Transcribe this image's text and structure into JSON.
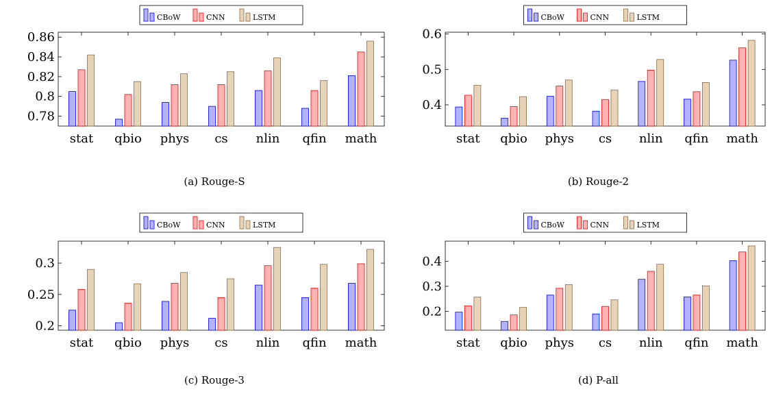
{
  "colors": {
    "CBoW": {
      "fill": "#b3b3ff",
      "stroke": "#0000ff"
    },
    "CNN": {
      "fill": "#ffb3b3",
      "stroke": "#ff0000"
    },
    "LSTM": {
      "fill": "#e6d3b8",
      "stroke": "#8b6b3e"
    }
  },
  "chart_data": [
    {
      "type": "bar",
      "caption": "(a) Rouge-S",
      "categories": [
        "stat",
        "qbio",
        "phys",
        "cs",
        "nlin",
        "qfin",
        "math"
      ],
      "series": [
        {
          "name": "CBoW",
          "values": [
            0.805,
            0.777,
            0.794,
            0.79,
            0.806,
            0.788,
            0.821
          ]
        },
        {
          "name": "CNN",
          "values": [
            0.827,
            0.802,
            0.812,
            0.812,
            0.826,
            0.806,
            0.845
          ]
        },
        {
          "name": "LSTM",
          "values": [
            0.842,
            0.815,
            0.823,
            0.825,
            0.839,
            0.816,
            0.856
          ]
        }
      ],
      "ylim": [
        0.77,
        0.865
      ],
      "yticks": [
        0.78,
        0.8,
        0.82,
        0.84,
        0.86
      ],
      "ytick_labels": [
        "0.78",
        "0.8",
        "0.82",
        "0.84",
        "0.86"
      ],
      "legend": "top-center"
    },
    {
      "type": "bar",
      "caption": "(b) Rouge-2",
      "categories": [
        "stat",
        "qbio",
        "phys",
        "cs",
        "nlin",
        "qfin",
        "math"
      ],
      "series": [
        {
          "name": "CBoW",
          "values": [
            0.394,
            0.362,
            0.424,
            0.382,
            0.466,
            0.416,
            0.526
          ]
        },
        {
          "name": "CNN",
          "values": [
            0.427,
            0.395,
            0.453,
            0.415,
            0.498,
            0.437,
            0.561
          ]
        },
        {
          "name": "LSTM",
          "values": [
            0.455,
            0.423,
            0.47,
            0.442,
            0.528,
            0.463,
            0.582
          ]
        }
      ],
      "ylim": [
        0.34,
        0.605
      ],
      "yticks": [
        0.4,
        0.5,
        0.6
      ],
      "ytick_labels": [
        "0.4",
        "0.5",
        "0.6"
      ],
      "legend": "top-center"
    },
    {
      "type": "bar",
      "caption": "(c) Rouge-3",
      "categories": [
        "stat",
        "qbio",
        "phys",
        "cs",
        "nlin",
        "qfin",
        "math"
      ],
      "series": [
        {
          "name": "CBoW",
          "values": [
            0.225,
            0.205,
            0.239,
            0.212,
            0.265,
            0.245,
            0.268
          ]
        },
        {
          "name": "CNN",
          "values": [
            0.258,
            0.236,
            0.268,
            0.245,
            0.296,
            0.26,
            0.299
          ]
        },
        {
          "name": "LSTM",
          "values": [
            0.29,
            0.267,
            0.285,
            0.275,
            0.325,
            0.298,
            0.322
          ]
        }
      ],
      "ylim": [
        0.193,
        0.335
      ],
      "yticks": [
        0.2,
        0.25,
        0.3
      ],
      "ytick_labels": [
        "0.2",
        "0.25",
        "0.3"
      ],
      "legend": "top-center"
    },
    {
      "type": "bar",
      "caption": "(d) P-all",
      "categories": [
        "stat",
        "qbio",
        "phys",
        "cs",
        "nlin",
        "qfin",
        "math"
      ],
      "series": [
        {
          "name": "CBoW",
          "values": [
            0.197,
            0.16,
            0.265,
            0.19,
            0.328,
            0.258,
            0.402
          ]
        },
        {
          "name": "CNN",
          "values": [
            0.222,
            0.186,
            0.292,
            0.22,
            0.36,
            0.265,
            0.437
          ]
        },
        {
          "name": "LSTM",
          "values": [
            0.257,
            0.216,
            0.307,
            0.246,
            0.388,
            0.302,
            0.461
          ]
        }
      ],
      "ylim": [
        0.125,
        0.48
      ],
      "yticks": [
        0.2,
        0.3,
        0.4
      ],
      "ytick_labels": [
        "0.2",
        "0.3",
        "0.4"
      ],
      "legend": "top-center"
    }
  ]
}
